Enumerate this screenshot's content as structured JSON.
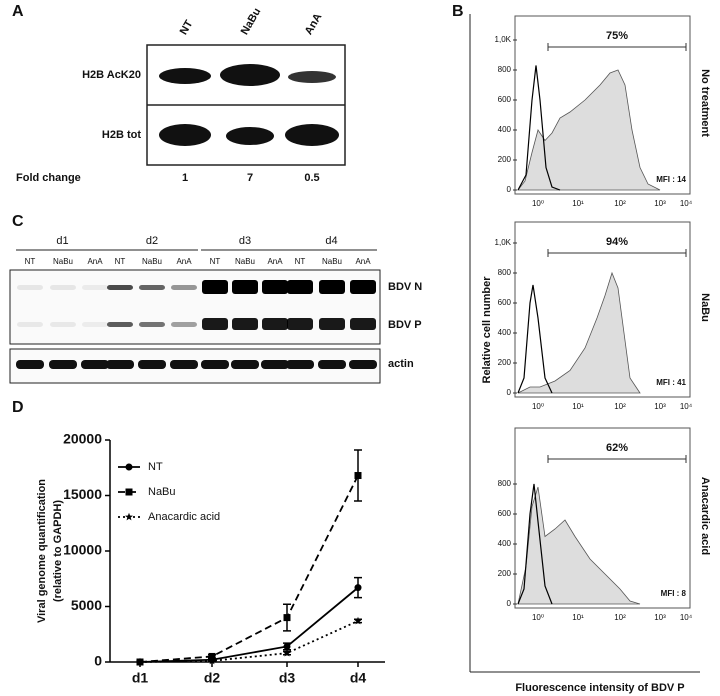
{
  "panel_labels": [
    "A",
    "B",
    "C",
    "D"
  ],
  "panel_a": {
    "lanes": [
      "NT",
      "NaBu",
      "AnA"
    ],
    "rows": [
      "H2B AcK20",
      "H2B tot"
    ],
    "fold_change_label": "Fold change",
    "fold_change": [
      1,
      7,
      0.5
    ]
  },
  "panel_b": {
    "y_axis_label": "Relative cell number",
    "x_axis_label": "Fluorescence intensity of BDV P",
    "xtick_labels": [
      "10⁰",
      "10¹",
      "10²",
      "10³",
      "10⁴"
    ],
    "histograms": [
      {
        "condition": "No treatment",
        "yticks": [
          {
            "value": 1000,
            "label": "1,0K"
          },
          800,
          600,
          400,
          200,
          0
        ],
        "gate": "75%",
        "mfi": "MFI : 14"
      },
      {
        "condition": "NaBu",
        "yticks": [
          {
            "value": 1000,
            "label": "1,0K"
          },
          800,
          600,
          400,
          200,
          0
        ],
        "gate": "94%",
        "mfi": "MFI : 41"
      },
      {
        "condition": "Anacardic acid",
        "yticks": [
          800,
          600,
          400,
          200,
          0
        ],
        "gate": "62%",
        "mfi": "MFI : 8"
      }
    ]
  },
  "panel_c": {
    "days": [
      "d1",
      "d2",
      "d3",
      "d4"
    ],
    "lanes": [
      "NT",
      "NaBu",
      "AnA"
    ],
    "bands": [
      "BDV N",
      "BDV P",
      "actin"
    ]
  },
  "chart_data": {
    "type": "line",
    "y_label": [
      "Viral genome quantification",
      "(relative to GAPDH)"
    ],
    "categories": [
      "d1",
      "d2",
      "d3",
      "d4"
    ],
    "series": [
      {
        "name": "NT",
        "color": "#000000",
        "line_style": "solid",
        "marker": "circle",
        "values": [
          0,
          200,
          1400,
          6700
        ],
        "errors": [
          0,
          100,
          300,
          900
        ]
      },
      {
        "name": "NaBu",
        "color": "#000000",
        "line_style": "dashed",
        "marker": "square",
        "values": [
          0,
          500,
          4000,
          16800
        ],
        "errors": [
          0,
          150,
          1200,
          2300
        ]
      },
      {
        "name": "Anacardic acid",
        "color": "#000000",
        "line_style": "dotted",
        "marker": "star",
        "values": [
          0,
          100,
          800,
          3700
        ],
        "errors": [
          0,
          50,
          150,
          150
        ]
      }
    ],
    "ylim": [
      0,
      20000
    ],
    "yticks": [
      0,
      5000,
      10000,
      15000,
      20000
    ]
  }
}
